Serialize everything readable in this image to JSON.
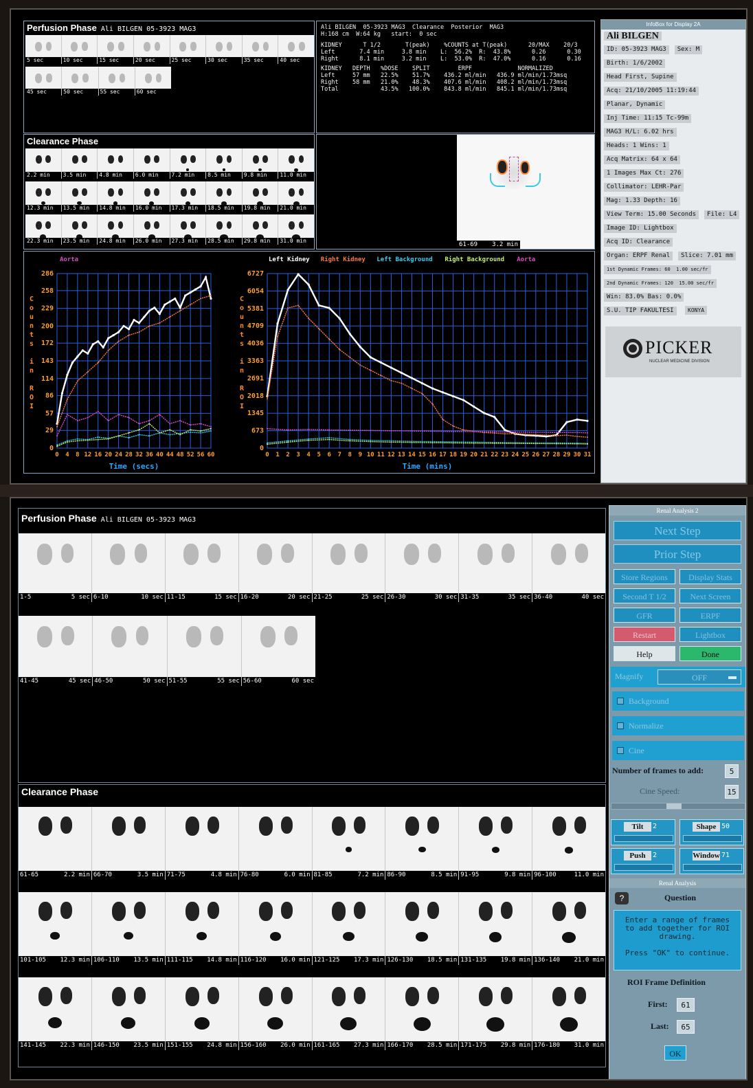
{
  "screen1": {
    "perfusion": {
      "title": "Perfusion Phase",
      "subtitle": "Ali BILGEN  05-3923 MAG3",
      "row1": [
        "5 sec",
        "10 sec",
        "15 sec",
        "20 sec",
        "25 sec",
        "30 sec",
        "35 sec",
        "40 sec"
      ],
      "row2": [
        "45 sec",
        "50 sec",
        "55 sec",
        "60 sec"
      ]
    },
    "clearance": {
      "title": "Clearance Phase",
      "row1": [
        "2.2 min",
        "3.5 min",
        "4.8 min",
        "6.0 min",
        "7.2 min",
        "8.5 min",
        "9.8 min",
        "11.0 min"
      ],
      "row2": [
        "12.3 min",
        "13.5 min",
        "14.8 min",
        "16.0 min",
        "17.3 min",
        "18.5 min",
        "19.8 min",
        "21.0 min"
      ],
      "row3": [
        "22.3 min",
        "23.5 min",
        "24.8 min",
        "26.0 min",
        "27.3 min",
        "28.5 min",
        "29.8 min",
        "31.0 min"
      ]
    },
    "stats": {
      "line1": "Ali BILGEN  05-3923 MAG3  Clearance  Posterior  MAG3",
      "line2": "H:168 cm  W:64 kg   start:  0 sec",
      "tbl1": "KIDNEY      T 1/2       T(peak)    %COUNTS at T(peak)      20/MAX    20/3\nLeft       7.4 min     3.8 min    L:  56.2%  R:  43.8%      0.26      0.30\nRight      8.1 min     3.2 min    L:  53.0%  R:  47.0%      0.16      0.16",
      "tbl2": "KIDNEY   DEPTH   %DOSE    SPLIT        ERPF             NORMALIZED\nLeft     57 mm   22.5%    51.7%    436.2 ml/min   436.9 ml/min/1.73msq\nRight    58 mm   21.0%    48.3%    407.6 ml/min   408.2 ml/min/1.73msq\nTotal            43.5%   100.0%    843.8 ml/min   845.1 ml/min/1.73msq"
    },
    "roi_image_label": "61-69",
    "roi_image_time": "3.2 min",
    "infobox": {
      "header": "InfoBox for Display 2A",
      "name": "Ali BILGEN",
      "rows": [
        "ID: 05-3923 MAG3",
        "Sex: M",
        "Birth: 1/6/2002",
        "Head First, Supine",
        "Acq: 21/10/2005  11:19:44",
        "Planar, Dynamic",
        "Inj Time: 11:15  Tc-99m",
        "MAG3  H/L: 6.02 hrs",
        "Heads: 1  Wins: 1",
        "Acq Matrix: 64  x 64",
        "1 Images  Max Ct: 276",
        "Collimator: LEHR-Par",
        "Mag: 1.33  Depth: 16",
        "View Term: 15.00 Seconds",
        "File: L4",
        "Image ID: Lightbox",
        "Acq ID: Clearance",
        "Organ: ERPF Renal",
        "Slice: 7.01 mm"
      ],
      "dyn1_label": "1st Dynamic Frames: 60",
      "dyn1_value": "1.00 sec/fr",
      "dyn2_label": "2nd Dynamic Frames: 120",
      "dyn2_value": "15.00 sec/fr",
      "win_row": "Win: 83.0%  Bas:  0.0%",
      "inst1": "S.U. TIP FAKULTESI",
      "inst2": "KONYA",
      "logo_text": "PICKER",
      "logo_sub": "NUCLEAR MEDICINE DIVISION"
    }
  },
  "chart_data": [
    {
      "type": "line",
      "legend": [
        "Aorta"
      ],
      "ylabel": "Counts in ROI",
      "xlabel": "Time (secs)",
      "yticks": [
        0,
        29,
        57,
        86,
        114,
        143,
        172,
        200,
        229,
        258,
        286
      ],
      "xticks": [
        "0",
        "4",
        "8",
        "12",
        "16",
        "20",
        "24",
        "28",
        "32",
        "36",
        "40",
        "44",
        "48",
        "52",
        "56",
        "60"
      ],
      "ylim": [
        0,
        286
      ],
      "xlim": [
        0,
        60
      ],
      "series": [
        {
          "name": "Aorta",
          "color": "#ffffff",
          "x": [
            0,
            2,
            4,
            6,
            8,
            10,
            12,
            14,
            16,
            18,
            20,
            22,
            24,
            26,
            28,
            30,
            32,
            34,
            36,
            38,
            40,
            42,
            44,
            46,
            48,
            50,
            52,
            54,
            56,
            58,
            60
          ],
          "values": [
            40,
            90,
            120,
            140,
            150,
            160,
            155,
            170,
            175,
            165,
            180,
            185,
            190,
            200,
            195,
            210,
            205,
            215,
            225,
            230,
            220,
            235,
            240,
            245,
            230,
            250,
            255,
            260,
            265,
            280,
            245
          ]
        },
        {
          "name": "",
          "color": "#ff7a3a",
          "x": [
            0,
            4,
            8,
            12,
            16,
            20,
            24,
            28,
            32,
            36,
            40,
            44,
            48,
            52,
            56,
            60
          ],
          "values": [
            35,
            80,
            110,
            125,
            140,
            160,
            175,
            185,
            190,
            200,
            205,
            215,
            225,
            235,
            245,
            250
          ]
        },
        {
          "name": "",
          "color": "#d94bc6",
          "x": [
            0,
            4,
            8,
            12,
            16,
            20,
            24,
            28,
            32,
            36,
            40,
            44,
            48,
            52,
            56,
            60
          ],
          "values": [
            20,
            55,
            45,
            50,
            60,
            45,
            55,
            50,
            40,
            45,
            55,
            40,
            45,
            38,
            40,
            35
          ]
        },
        {
          "name": "",
          "color": "#35d0f0",
          "x": [
            0,
            4,
            8,
            12,
            16,
            20,
            24,
            28,
            32,
            36,
            40,
            44,
            48,
            52,
            56,
            60
          ],
          "values": [
            5,
            12,
            15,
            14,
            18,
            16,
            20,
            17,
            22,
            20,
            25,
            22,
            24,
            26,
            25,
            28
          ]
        },
        {
          "name": "",
          "color": "#c8f06a",
          "x": [
            0,
            4,
            8,
            12,
            16,
            20,
            24,
            28,
            32,
            36,
            40,
            44,
            48,
            52,
            56,
            60
          ],
          "values": [
            3,
            10,
            12,
            13,
            14,
            15,
            20,
            25,
            30,
            40,
            25,
            30,
            22,
            30,
            28,
            32
          ]
        }
      ]
    },
    {
      "type": "line",
      "legend": [
        "Left Kidney",
        "Right Kidney",
        "Left Background",
        "Right Background",
        "Aorta"
      ],
      "legend_colors": [
        "#ffffff",
        "#ff7a3a",
        "#35d0f0",
        "#c8f06a",
        "#d94bc6"
      ],
      "ylabel": "Counts in ROI",
      "xlabel": "Time (mins)",
      "yticks": [
        0,
        673,
        1345,
        2018,
        2691,
        3363,
        4036,
        4709,
        5381,
        6054,
        6727
      ],
      "xticks": [
        "0",
        "1",
        "2",
        "3",
        "4",
        "5",
        "6",
        "7",
        "8",
        "9",
        "10",
        "11",
        "12",
        "13",
        "14",
        "15",
        "16",
        "17",
        "18",
        "19",
        "20",
        "21",
        "22",
        "23",
        "24",
        "25",
        "26",
        "27",
        "28",
        "29",
        "30",
        "31"
      ],
      "ylim": [
        0,
        6727
      ],
      "xlim": [
        0,
        31
      ],
      "series": [
        {
          "name": "Left Kidney",
          "color": "#ffffff",
          "x": [
            0,
            1,
            2,
            3,
            4,
            5,
            6,
            7,
            8,
            9,
            10,
            11,
            12,
            13,
            14,
            15,
            16,
            17,
            18,
            19,
            20,
            21,
            22,
            23,
            24,
            25,
            26,
            27,
            28,
            29,
            30,
            31
          ],
          "values": [
            2000,
            4800,
            6100,
            6700,
            6300,
            5500,
            5400,
            5000,
            4400,
            3900,
            3500,
            3300,
            3100,
            2900,
            2700,
            2500,
            2300,
            2150,
            2000,
            1850,
            1600,
            1350,
            1200,
            700,
            550,
            500,
            480,
            450,
            500,
            1000,
            1100,
            1050
          ]
        },
        {
          "name": "Right Kidney",
          "color": "#ff7a3a",
          "x": [
            0,
            1,
            2,
            3,
            4,
            5,
            6,
            7,
            8,
            9,
            10,
            11,
            12,
            13,
            14,
            15,
            16,
            17,
            18,
            19,
            20,
            21,
            22,
            23,
            24,
            25,
            26,
            27,
            28,
            29,
            30,
            31
          ],
          "values": [
            1900,
            4300,
            5400,
            5500,
            5000,
            4600,
            4200,
            3800,
            3500,
            3200,
            3000,
            2800,
            2600,
            2500,
            2300,
            2100,
            1700,
            1100,
            850,
            700,
            650,
            600,
            580,
            550,
            560,
            530,
            520,
            500,
            480,
            500,
            450,
            420
          ]
        },
        {
          "name": "Left Background",
          "color": "#35d0f0",
          "x": [
            0,
            2,
            4,
            6,
            8,
            10,
            12,
            14,
            16,
            18,
            20,
            22,
            24,
            26,
            28,
            30,
            31
          ],
          "values": [
            200,
            280,
            350,
            400,
            330,
            300,
            280,
            260,
            250,
            240,
            230,
            220,
            210,
            200,
            200,
            190,
            180
          ]
        },
        {
          "name": "Right Background",
          "color": "#c8f06a",
          "x": [
            0,
            2,
            4,
            6,
            8,
            10,
            12,
            14,
            16,
            18,
            20,
            22,
            24,
            26,
            28,
            30,
            31
          ],
          "values": [
            150,
            230,
            300,
            330,
            280,
            250,
            230,
            220,
            210,
            200,
            190,
            185,
            180,
            175,
            170,
            165,
            160
          ]
        },
        {
          "name": "Aorta",
          "color": "#d94bc6",
          "x": [
            0,
            2,
            4,
            6,
            8,
            10,
            12,
            14,
            16,
            18,
            20,
            22,
            24,
            26,
            28,
            30,
            31
          ],
          "values": [
            750,
            700,
            720,
            700,
            690,
            680,
            670,
            660,
            650,
            640,
            640,
            630,
            620,
            610,
            600,
            600,
            590
          ]
        }
      ]
    }
  ],
  "screen2": {
    "perfusion": {
      "title": "Perfusion Phase",
      "subtitle": "Ali BILGEN  05-3923 MAG3",
      "row1": [
        {
          "range": "1-5",
          "time": "5 sec"
        },
        {
          "range": "6-10",
          "time": "10 sec"
        },
        {
          "range": "11-15",
          "time": "15 sec"
        },
        {
          "range": "16-20",
          "time": "20 sec"
        },
        {
          "range": "21-25",
          "time": "25 sec"
        },
        {
          "range": "26-30",
          "time": "30 sec"
        },
        {
          "range": "31-35",
          "time": "35 sec"
        },
        {
          "range": "36-40",
          "time": "40 sec"
        }
      ],
      "row2": [
        {
          "range": "41-45",
          "time": "45 sec"
        },
        {
          "range": "46-50",
          "time": "50 sec"
        },
        {
          "range": "51-55",
          "time": "55 sec"
        },
        {
          "range": "56-60",
          "time": "60 sec"
        }
      ]
    },
    "clearance": {
      "title": "Clearance Phase",
      "row1": [
        {
          "range": "61-65",
          "time": "2.2 min"
        },
        {
          "range": "66-70",
          "time": "3.5 min"
        },
        {
          "range": "71-75",
          "time": "4.8 min"
        },
        {
          "range": "76-80",
          "time": "6.0 min"
        },
        {
          "range": "81-85",
          "time": "7.2 min"
        },
        {
          "range": "86-90",
          "time": "8.5 min"
        },
        {
          "range": "91-95",
          "time": "9.8 min"
        },
        {
          "range": "96-100",
          "time": "11.0 min"
        }
      ],
      "row2": [
        {
          "range": "101-105",
          "time": "12.3 min"
        },
        {
          "range": "106-110",
          "time": "13.5 min"
        },
        {
          "range": "111-115",
          "time": "14.8 min"
        },
        {
          "range": "116-120",
          "time": "16.0 min"
        },
        {
          "range": "121-125",
          "time": "17.3 min"
        },
        {
          "range": "126-130",
          "time": "18.5 min"
        },
        {
          "range": "131-135",
          "time": "19.8 min"
        },
        {
          "range": "136-140",
          "time": "21.0 min"
        }
      ],
      "row3": [
        {
          "range": "141-145",
          "time": "22.3 min"
        },
        {
          "range": "146-150",
          "time": "23.5 min"
        },
        {
          "range": "151-155",
          "time": "24.8 min"
        },
        {
          "range": "156-160",
          "time": "26.0 min"
        },
        {
          "range": "161-165",
          "time": "27.3 min"
        },
        {
          "range": "166-170",
          "time": "28.5 min"
        },
        {
          "range": "171-175",
          "time": "29.8 min"
        },
        {
          "range": "176-180",
          "time": "31.0 min"
        }
      ]
    },
    "panel": {
      "title": "Renal Analysis 2",
      "next_step": "Next Step",
      "prior_step": "Prior Step",
      "store_regions": "Store Regions",
      "display_stats": "Display Stats",
      "second_t12": "Second T 1/2",
      "next_screen": "Next Screen",
      "gfr": "GFR",
      "erpf": "ERPF",
      "restart": "Restart",
      "lightbox": "Lightbox",
      "help": "Help",
      "done": "Done",
      "magnify_label": "Magnify",
      "magnify_value": "OFF",
      "background": "Background",
      "normalize": "Normalize",
      "cine": "Cine",
      "frames_label": "Number of frames to add:",
      "frames_value": "5",
      "cine_speed_label": "Cine Speed:",
      "cine_speed_value": "15",
      "tilt_label": "Tilt",
      "tilt_value": "2",
      "shape_label": "Shape",
      "shape_value": "50",
      "push_label": "Push",
      "push_value": "2",
      "window_label": "Window",
      "window_value": "71",
      "dialog_title": "Renal Analysis",
      "question_title": "Question",
      "question_text": "Enter a range of frames to add together for ROI drawing.",
      "question_hint": "Press \"OK\" to continue.",
      "roi_title": "ROI Frame Definition",
      "first_label": "First:",
      "first_value": "61",
      "last_label": "Last:",
      "last_value": "65",
      "ok": "OK"
    }
  }
}
